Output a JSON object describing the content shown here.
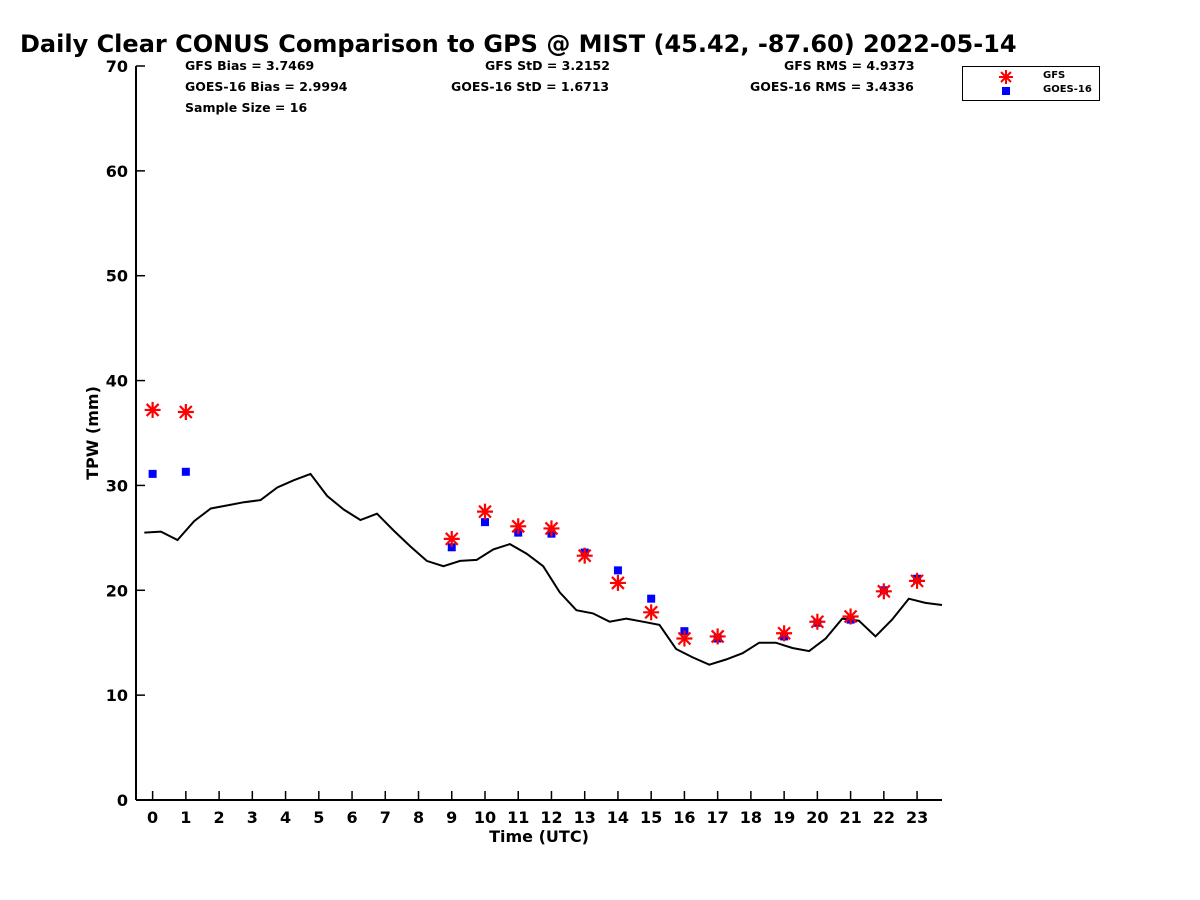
{
  "chart_data": {
    "type": "scatter",
    "title": "Daily Clear CONUS Comparison to GPS @ MIST (45.42, -87.60) 2022-05-14",
    "xlabel": "Time (UTC)",
    "ylabel": "TPW (mm)",
    "xlim": [
      -0.5,
      23.75
    ],
    "ylim": [
      0,
      70
    ],
    "x_ticks": [
      "0",
      "1",
      "2",
      "3",
      "4",
      "5",
      "6",
      "7",
      "8",
      "9",
      "10",
      "11",
      "12",
      "13",
      "14",
      "15",
      "16",
      "17",
      "18",
      "19",
      "20",
      "21",
      "22",
      "23"
    ],
    "y_ticks": [
      "0",
      "10",
      "20",
      "30",
      "40",
      "50",
      "60",
      "70"
    ],
    "grid": false,
    "legend_position": "top-right",
    "stats": {
      "gfs_bias": "GFS Bias = 3.7469",
      "goes_bias": "GOES-16 Bias = 2.9994",
      "sample_size": "Sample Size = 16",
      "gfs_std": "GFS StD = 3.2152",
      "goes_std": "GOES-16 StD = 1.6713",
      "gfs_rms": "GFS RMS = 4.9373",
      "goes_rms": "GOES-16 RMS = 3.4336"
    },
    "series": [
      {
        "name": "GFS",
        "marker": "asterisk",
        "color": "#ff0000",
        "points": [
          [
            0,
            37.2
          ],
          [
            1,
            37.0
          ],
          [
            9,
            24.9
          ],
          [
            10,
            27.5
          ],
          [
            11,
            26.1
          ],
          [
            12,
            25.9
          ],
          [
            13,
            23.3
          ],
          [
            14,
            20.7
          ],
          [
            15,
            17.9
          ],
          [
            16,
            15.4
          ],
          [
            17,
            15.6
          ],
          [
            19,
            15.9
          ],
          [
            20,
            17.0
          ],
          [
            21,
            17.5
          ],
          [
            22,
            19.9
          ],
          [
            23,
            20.9
          ]
        ]
      },
      {
        "name": "GOES-16",
        "marker": "square",
        "color": "#0000ff",
        "points": [
          [
            0,
            31.1
          ],
          [
            1,
            31.3
          ],
          [
            9,
            24.1
          ],
          [
            10,
            26.5
          ],
          [
            11,
            25.5
          ],
          [
            12,
            25.4
          ],
          [
            13,
            23.6
          ],
          [
            14,
            21.9
          ],
          [
            15,
            19.2
          ],
          [
            16,
            16.1
          ],
          [
            17,
            15.4
          ],
          [
            19,
            15.6
          ],
          [
            20,
            16.9
          ],
          [
            21,
            17.2
          ],
          [
            22,
            20.0
          ],
          [
            23,
            21.1
          ]
        ]
      },
      {
        "name": "GPS",
        "marker": "line",
        "color": "#000000",
        "points": [
          [
            -0.25,
            25.5
          ],
          [
            0.25,
            25.6
          ],
          [
            0.75,
            24.8
          ],
          [
            1.25,
            26.6
          ],
          [
            1.75,
            27.8
          ],
          [
            2.25,
            28.1
          ],
          [
            2.75,
            28.4
          ],
          [
            3.25,
            28.6
          ],
          [
            3.75,
            29.8
          ],
          [
            4.25,
            30.5
          ],
          [
            4.75,
            31.1
          ],
          [
            5.25,
            29.0
          ],
          [
            5.75,
            27.7
          ],
          [
            6.25,
            26.7
          ],
          [
            6.75,
            27.3
          ],
          [
            7.25,
            25.7
          ],
          [
            7.75,
            24.2
          ],
          [
            8.25,
            22.8
          ],
          [
            8.75,
            22.3
          ],
          [
            9.25,
            22.8
          ],
          [
            9.75,
            22.9
          ],
          [
            10.25,
            23.9
          ],
          [
            10.75,
            24.4
          ],
          [
            11.25,
            23.5
          ],
          [
            11.75,
            22.3
          ],
          [
            12.25,
            19.8
          ],
          [
            12.75,
            18.1
          ],
          [
            13.25,
            17.8
          ],
          [
            13.75,
            17.0
          ],
          [
            14.25,
            17.3
          ],
          [
            14.75,
            17.0
          ],
          [
            15.25,
            16.7
          ],
          [
            15.75,
            14.4
          ],
          [
            16.25,
            13.6
          ],
          [
            16.75,
            12.9
          ],
          [
            17.25,
            13.4
          ],
          [
            17.75,
            14.0
          ],
          [
            18.25,
            15.0
          ],
          [
            18.75,
            15.0
          ],
          [
            19.25,
            14.5
          ],
          [
            19.75,
            14.2
          ],
          [
            20.25,
            15.4
          ],
          [
            20.75,
            17.3
          ],
          [
            21.25,
            17.1
          ],
          [
            21.75,
            15.6
          ],
          [
            22.25,
            17.2
          ],
          [
            22.75,
            19.2
          ],
          [
            23.25,
            18.8
          ],
          [
            23.75,
            18.6
          ]
        ]
      }
    ]
  },
  "legend": {
    "gfs_label": "GFS",
    "goes_label": "GOES-16"
  }
}
